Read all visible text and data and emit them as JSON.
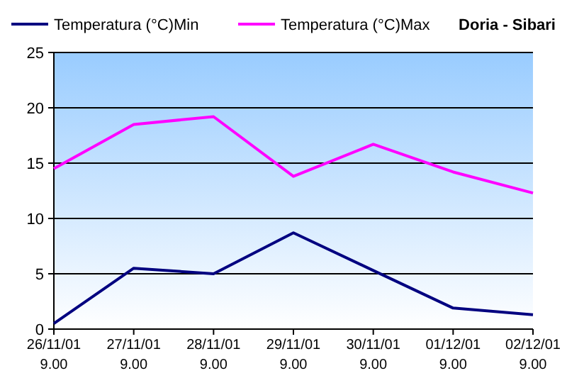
{
  "chart_data": {
    "type": "line",
    "title": "Doria - Sibari",
    "categories": [
      "26/11/01 9.00",
      "27/11/01 9.00",
      "28/11/01 9.00",
      "29/11/01 9.00",
      "30/11/01 9.00",
      "01/12/01 9.00",
      "02/12/01 9.00"
    ],
    "series": [
      {
        "name": "Temperatura (°C)Min",
        "color": "#000080",
        "values": [
          0.5,
          5.5,
          5.0,
          8.7,
          5.3,
          1.9,
          1.3
        ]
      },
      {
        "name": "Temperatura (°C)Max",
        "color": "#ff00ff",
        "values": [
          14.5,
          18.5,
          19.2,
          13.8,
          16.7,
          14.2,
          12.3
        ]
      }
    ],
    "ylim": [
      0,
      25
    ],
    "yticks": [
      0,
      5,
      10,
      15,
      20,
      25
    ],
    "grid": "y",
    "legend": "top",
    "marker": "none",
    "line_style": "solid"
  }
}
